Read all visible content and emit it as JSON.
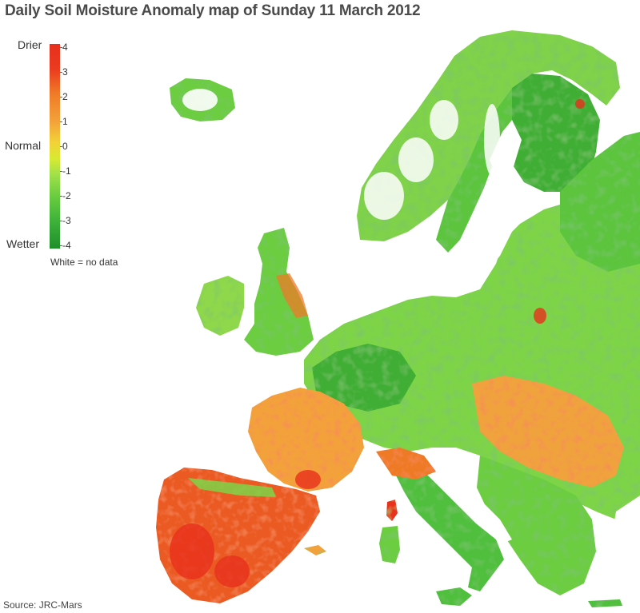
{
  "title": "Daily Soil Moisture Anomaly map of Sunday 11 March 2012",
  "legend": {
    "top_label": "Drier",
    "middle_label": "Normal",
    "bottom_label": "Wetter",
    "ticks": [
      "4",
      "3",
      "2",
      "1",
      "0",
      "-1",
      "-2",
      "-3",
      "-4"
    ],
    "no_data_note": "White = no data",
    "scale_min": -4,
    "scale_max": 4
  },
  "source": "Source: JRC-Mars",
  "colors": {
    "very_dry": "#e8301c",
    "dry": "#ef7a27",
    "slightly_dry": "#f3a23a",
    "normal": "#f2d138",
    "slightly_wet": "#9fe04a",
    "wet": "#4fbf3d",
    "very_wet": "#1f8f2b",
    "no_data": "#ffffff"
  }
}
